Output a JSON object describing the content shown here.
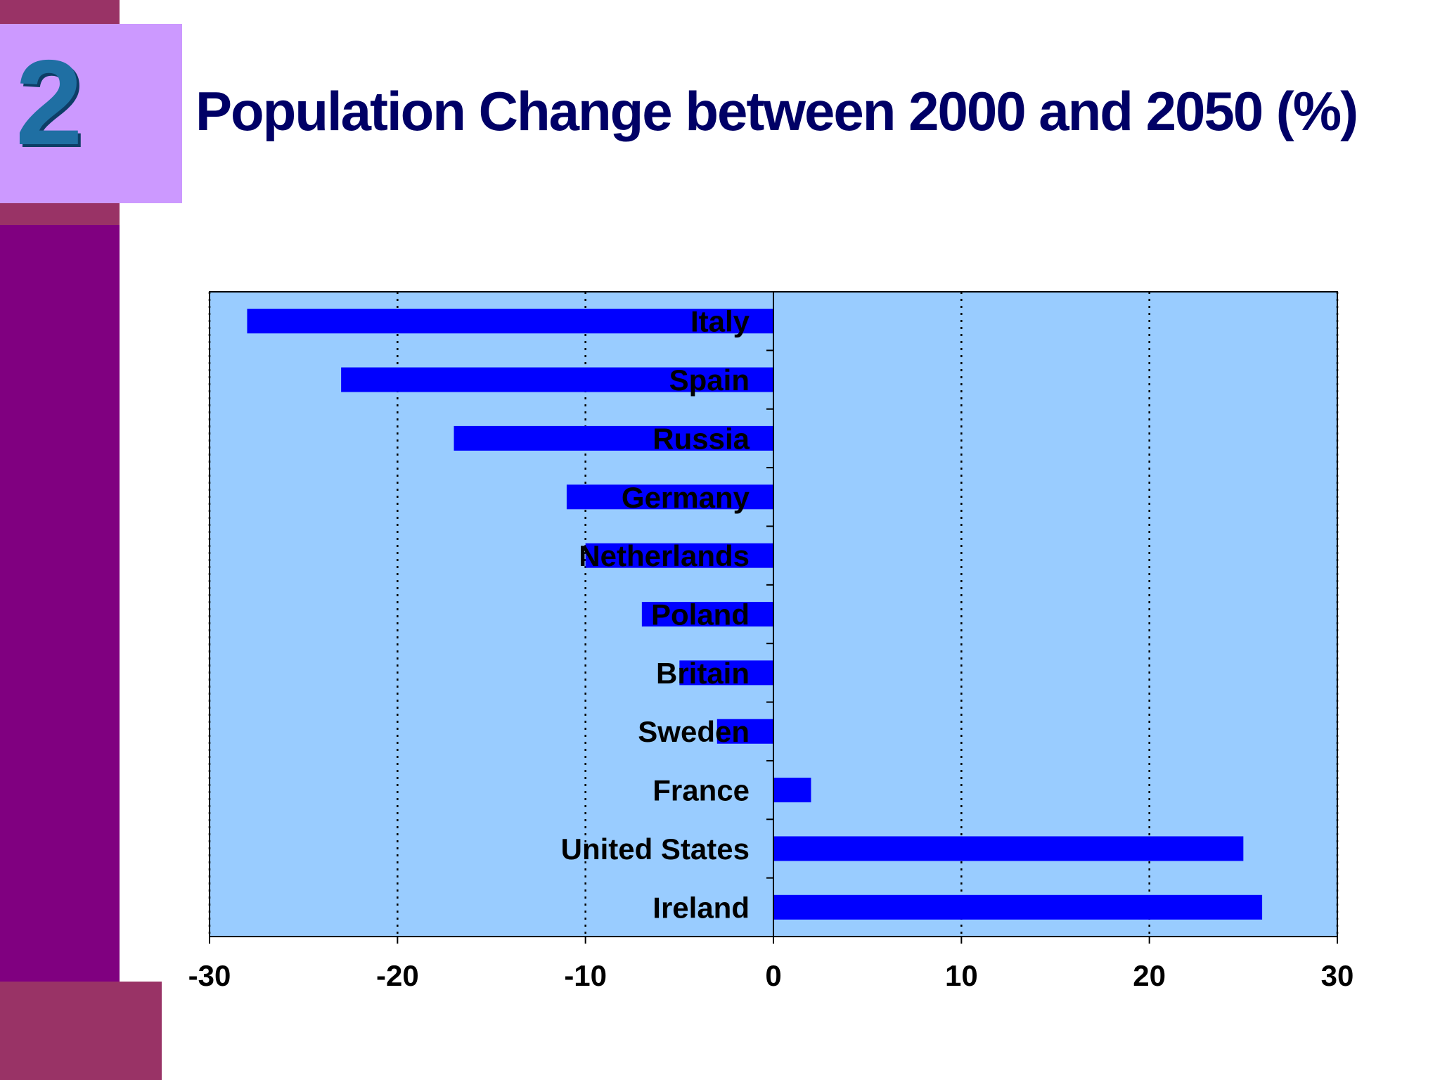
{
  "slide": {
    "number": "2",
    "title": "Population Change between 2000 and 2050 (%)"
  },
  "colors": {
    "accent_purple": "#800080",
    "accent_maroon": "#993366",
    "number_box": "#cc99ff",
    "title_text": "#000066",
    "plot_background": "#99ccff",
    "bar": "#0000ff"
  },
  "chart_data": {
    "type": "bar",
    "orientation": "horizontal",
    "title": "",
    "xlabel": "",
    "ylabel": "",
    "categories": [
      "Italy",
      "Spain",
      "Russia",
      "Germany",
      "Netherlands",
      "Poland",
      "Britain",
      "Sweden",
      "France",
      "United States",
      "Ireland"
    ],
    "values": [
      -28,
      -23,
      -17,
      -11,
      -10,
      -7,
      -5,
      -3,
      2,
      25,
      26
    ],
    "xlim": [
      -30,
      30
    ],
    "xticks": [
      -30,
      -20,
      -10,
      0,
      10,
      20,
      30
    ],
    "xtick_labels": [
      "-30",
      "-20",
      "-10",
      "0",
      "10",
      "20",
      "30"
    ],
    "gridlines": "vertical-dotted",
    "legend": "none"
  }
}
